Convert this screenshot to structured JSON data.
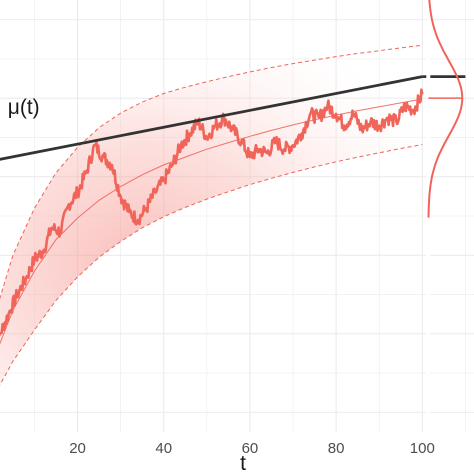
{
  "chart_data": {
    "type": "line",
    "title": "",
    "xlabel": "t",
    "ylabel": "",
    "xlim": [
      2,
      112
    ],
    "ylim": [
      -0.5,
      10.5
    ],
    "x_ticks": [
      20,
      40,
      60,
      80,
      100
    ],
    "x_tick_labels": [
      "20",
      "40",
      "60",
      "80",
      "100"
    ],
    "grid": true,
    "colors": {
      "accent": "#f0645a",
      "mean_line": "#333333",
      "band": "#f8b7b2",
      "grid": "#ebebeb"
    },
    "annotations": [
      {
        "text": "μ(t)",
        "x": 7.5,
        "y": 7.6
      }
    ],
    "series": [
      {
        "kind": "mu_line",
        "x": [
          0,
          100,
          110
        ],
        "y": [
          6.4,
          8.55,
          8.55
        ]
      },
      {
        "kind": "expected_curve",
        "x": [
          0,
          5,
          10,
          15,
          20,
          25,
          30,
          35,
          40,
          45,
          50,
          55,
          60,
          65,
          70,
          75,
          80,
          85,
          90,
          95,
          100
        ],
        "y": [
          1.2,
          2.6,
          3.6,
          4.4,
          4.95,
          5.4,
          5.75,
          6.05,
          6.3,
          6.5,
          6.7,
          6.87,
          7.03,
          7.18,
          7.32,
          7.45,
          7.57,
          7.68,
          7.78,
          7.88,
          7.98
        ]
      },
      {
        "kind": "upper_bound",
        "x": [
          0,
          5,
          10,
          15,
          20,
          25,
          30,
          35,
          40,
          45,
          50,
          55,
          60,
          65,
          70,
          75,
          80,
          85,
          90,
          95,
          100
        ],
        "y": [
          2.2,
          4.0,
          5.2,
          6.1,
          6.75,
          7.25,
          7.62,
          7.9,
          8.12,
          8.28,
          8.42,
          8.55,
          8.67,
          8.78,
          8.88,
          8.97,
          9.06,
          9.14,
          9.21,
          9.28,
          9.35
        ]
      },
      {
        "kind": "lower_bound",
        "x": [
          0,
          5,
          10,
          15,
          20,
          25,
          30,
          35,
          40,
          45,
          50,
          55,
          60,
          65,
          70,
          75,
          80,
          85,
          90,
          95,
          100
        ],
        "y": [
          0.3,
          1.3,
          2.1,
          2.85,
          3.45,
          3.95,
          4.35,
          4.7,
          4.98,
          5.22,
          5.43,
          5.62,
          5.8,
          5.96,
          6.11,
          6.25,
          6.38,
          6.5,
          6.61,
          6.72,
          6.82
        ]
      },
      {
        "kind": "sample_path",
        "x": [
          0,
          2,
          4,
          6,
          8,
          10,
          12,
          14,
          16,
          18,
          20,
          22,
          24,
          26,
          28,
          30,
          32,
          34,
          36,
          38,
          40,
          42,
          44,
          46,
          48,
          50,
          52,
          54,
          56,
          58,
          60,
          62,
          64,
          66,
          68,
          70,
          72,
          74,
          76,
          78,
          80,
          82,
          84,
          86,
          88,
          90,
          92,
          94,
          96,
          98,
          100
        ],
        "y": [
          1.3,
          2.0,
          2.5,
          3.0,
          3.4,
          3.9,
          4.1,
          4.7,
          4.6,
          5.3,
          5.6,
          6.1,
          6.8,
          6.5,
          6.3,
          5.5,
          5.1,
          4.9,
          5.2,
          5.6,
          5.9,
          6.3,
          6.8,
          7.1,
          7.4,
          7.0,
          7.3,
          7.5,
          7.2,
          6.9,
          6.5,
          6.7,
          6.6,
          6.9,
          6.7,
          6.8,
          7.1,
          7.6,
          7.5,
          7.8,
          7.6,
          7.3,
          7.6,
          7.2,
          7.4,
          7.3,
          7.5,
          7.4,
          7.8,
          7.7,
          8.1
        ]
      },
      {
        "kind": "marginal_density",
        "note_mean": 8.0,
        "note_sd": 0.95,
        "mean_level": 8.0
      }
    ]
  }
}
